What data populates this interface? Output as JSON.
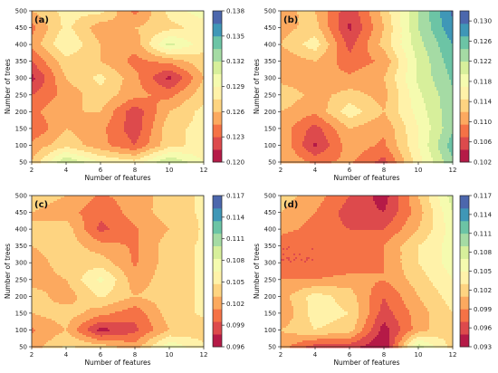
{
  "chart_data": [
    {
      "type": "heatmap",
      "panel_label": "(a)",
      "xlabel": "Number of features",
      "ylabel": "Number of trees",
      "x": [
        2,
        4,
        6,
        8,
        10,
        12
      ],
      "y": [
        50,
        100,
        150,
        200,
        250,
        300,
        350,
        400,
        450,
        500
      ],
      "x_ticks": [
        "2",
        "4",
        "6",
        "8",
        "10",
        "12"
      ],
      "y_ticks": [
        "50",
        "100",
        "150",
        "200",
        "250",
        "300",
        "350",
        "400",
        "450",
        "500"
      ],
      "colorbar_ticks": [
        "0.120",
        "0.123",
        "0.126",
        "0.129",
        "0.132",
        "0.135",
        "0.138"
      ],
      "vmin": 0.12,
      "vmax": 0.138,
      "z": [
        [
          0.126,
          0.132,
          0.129,
          0.128,
          0.132,
          0.129
        ],
        [
          0.125,
          0.127,
          0.125,
          0.123,
          0.127,
          0.128
        ],
        [
          0.123,
          0.126,
          0.125,
          0.122,
          0.127,
          0.128
        ],
        [
          0.124,
          0.126,
          0.126,
          0.122,
          0.126,
          0.128
        ],
        [
          0.123,
          0.125,
          0.127,
          0.125,
          0.124,
          0.127
        ],
        [
          0.121,
          0.126,
          0.128,
          0.125,
          0.121,
          0.126
        ],
        [
          0.123,
          0.127,
          0.126,
          0.124,
          0.125,
          0.127
        ],
        [
          0.125,
          0.129,
          0.126,
          0.125,
          0.131,
          0.128
        ],
        [
          0.124,
          0.128,
          0.125,
          0.126,
          0.127,
          0.128
        ],
        [
          0.126,
          0.128,
          0.128,
          0.124,
          0.128,
          0.13
        ]
      ]
    },
    {
      "type": "heatmap",
      "panel_label": "(b)",
      "xlabel": "Number of features",
      "ylabel": "Number of trees",
      "x": [
        2,
        4,
        6,
        8,
        10,
        12
      ],
      "y": [
        50,
        100,
        150,
        200,
        250,
        300,
        350,
        400,
        450,
        500
      ],
      "x_ticks": [
        "2",
        "4",
        "6",
        "8",
        "10",
        "12"
      ],
      "y_ticks": [
        "50",
        "100",
        "150",
        "200",
        "250",
        "300",
        "350",
        "400",
        "450",
        "500"
      ],
      "colorbar_ticks": [
        "0.102",
        "0.106",
        "0.110",
        "0.114",
        "0.118",
        "0.122",
        "0.126",
        "0.130"
      ],
      "vmin": 0.102,
      "vmax": 0.132,
      "z": [
        [
          0.112,
          0.109,
          0.11,
          0.106,
          0.116,
          0.124
        ],
        [
          0.112,
          0.104,
          0.111,
          0.109,
          0.117,
          0.126
        ],
        [
          0.111,
          0.106,
          0.112,
          0.11,
          0.117,
          0.124
        ],
        [
          0.112,
          0.11,
          0.116,
          0.112,
          0.118,
          0.124
        ],
        [
          0.114,
          0.111,
          0.113,
          0.111,
          0.119,
          0.124
        ],
        [
          0.111,
          0.11,
          0.11,
          0.112,
          0.12,
          0.125
        ],
        [
          0.11,
          0.112,
          0.108,
          0.11,
          0.12,
          0.126
        ],
        [
          0.112,
          0.116,
          0.106,
          0.113,
          0.121,
          0.127
        ],
        [
          0.111,
          0.113,
          0.104,
          0.112,
          0.122,
          0.129
        ],
        [
          0.112,
          0.112,
          0.105,
          0.113,
          0.122,
          0.13
        ]
      ]
    },
    {
      "type": "heatmap",
      "panel_label": "(c)",
      "xlabel": "Number of features",
      "ylabel": "Number of trees",
      "x": [
        2,
        4,
        6,
        8,
        10,
        12
      ],
      "y": [
        50,
        100,
        150,
        200,
        250,
        300,
        350,
        400,
        450,
        500
      ],
      "x_ticks": [
        "2",
        "4",
        "6",
        "8",
        "10",
        "12"
      ],
      "y_ticks": [
        "50",
        "100",
        "150",
        "200",
        "250",
        "300",
        "350",
        "400",
        "450",
        "500"
      ],
      "colorbar_ticks": [
        "0.096",
        "0.099",
        "0.102",
        "0.105",
        "0.108",
        "0.111",
        "0.114",
        "0.117"
      ],
      "vmin": 0.096,
      "vmax": 0.117,
      "z": [
        [
          0.102,
          0.105,
          0.104,
          0.102,
          0.108,
          0.105
        ],
        [
          0.101,
          0.103,
          0.097,
          0.099,
          0.103,
          0.104
        ],
        [
          0.103,
          0.104,
          0.102,
          0.1,
          0.104,
          0.105
        ],
        [
          0.104,
          0.102,
          0.105,
          0.103,
          0.104,
          0.105
        ],
        [
          0.102,
          0.103,
          0.107,
          0.102,
          0.104,
          0.105
        ],
        [
          0.102,
          0.104,
          0.104,
          0.101,
          0.104,
          0.105
        ],
        [
          0.103,
          0.104,
          0.102,
          0.101,
          0.104,
          0.105
        ],
        [
          0.103,
          0.104,
          0.099,
          0.101,
          0.103,
          0.105
        ],
        [
          0.103,
          0.102,
          0.1,
          0.102,
          0.104,
          0.105
        ],
        [
          0.104,
          0.103,
          0.101,
          0.102,
          0.104,
          0.105
        ]
      ]
    },
    {
      "type": "heatmap",
      "panel_label": "(d)",
      "xlabel": "Number of features",
      "ylabel": "Number of trees",
      "x": [
        2,
        4,
        6,
        8,
        10,
        12
      ],
      "y": [
        50,
        100,
        150,
        200,
        250,
        300,
        350,
        400,
        450,
        500
      ],
      "x_ticks": [
        "2",
        "4",
        "6",
        "8",
        "10",
        "12"
      ],
      "y_ticks": [
        "50",
        "100",
        "150",
        "200",
        "250",
        "300",
        "350",
        "400",
        "450",
        "500"
      ],
      "colorbar_ticks": [
        "0.093",
        "0.096",
        "0.099",
        "0.102",
        "0.105",
        "0.108",
        "0.111",
        "0.114",
        "0.117"
      ],
      "vmin": 0.093,
      "vmax": 0.117,
      "z": [
        [
          0.1,
          0.096,
          0.096,
          0.093,
          0.108,
          0.102
        ],
        [
          0.101,
          0.103,
          0.102,
          0.094,
          0.1,
          0.103
        ],
        [
          0.099,
          0.104,
          0.103,
          0.096,
          0.1,
          0.103
        ],
        [
          0.1,
          0.104,
          0.102,
          0.097,
          0.101,
          0.104
        ],
        [
          0.099,
          0.099,
          0.1,
          0.099,
          0.102,
          0.105
        ],
        [
          0.097,
          0.097,
          0.097,
          0.099,
          0.103,
          0.106
        ],
        [
          0.097,
          0.097,
          0.098,
          0.099,
          0.103,
          0.106
        ],
        [
          0.1,
          0.098,
          0.097,
          0.097,
          0.101,
          0.106
        ],
        [
          0.101,
          0.099,
          0.096,
          0.095,
          0.1,
          0.107
        ],
        [
          0.102,
          0.1,
          0.097,
          0.094,
          0.101,
          0.108
        ]
      ]
    }
  ]
}
